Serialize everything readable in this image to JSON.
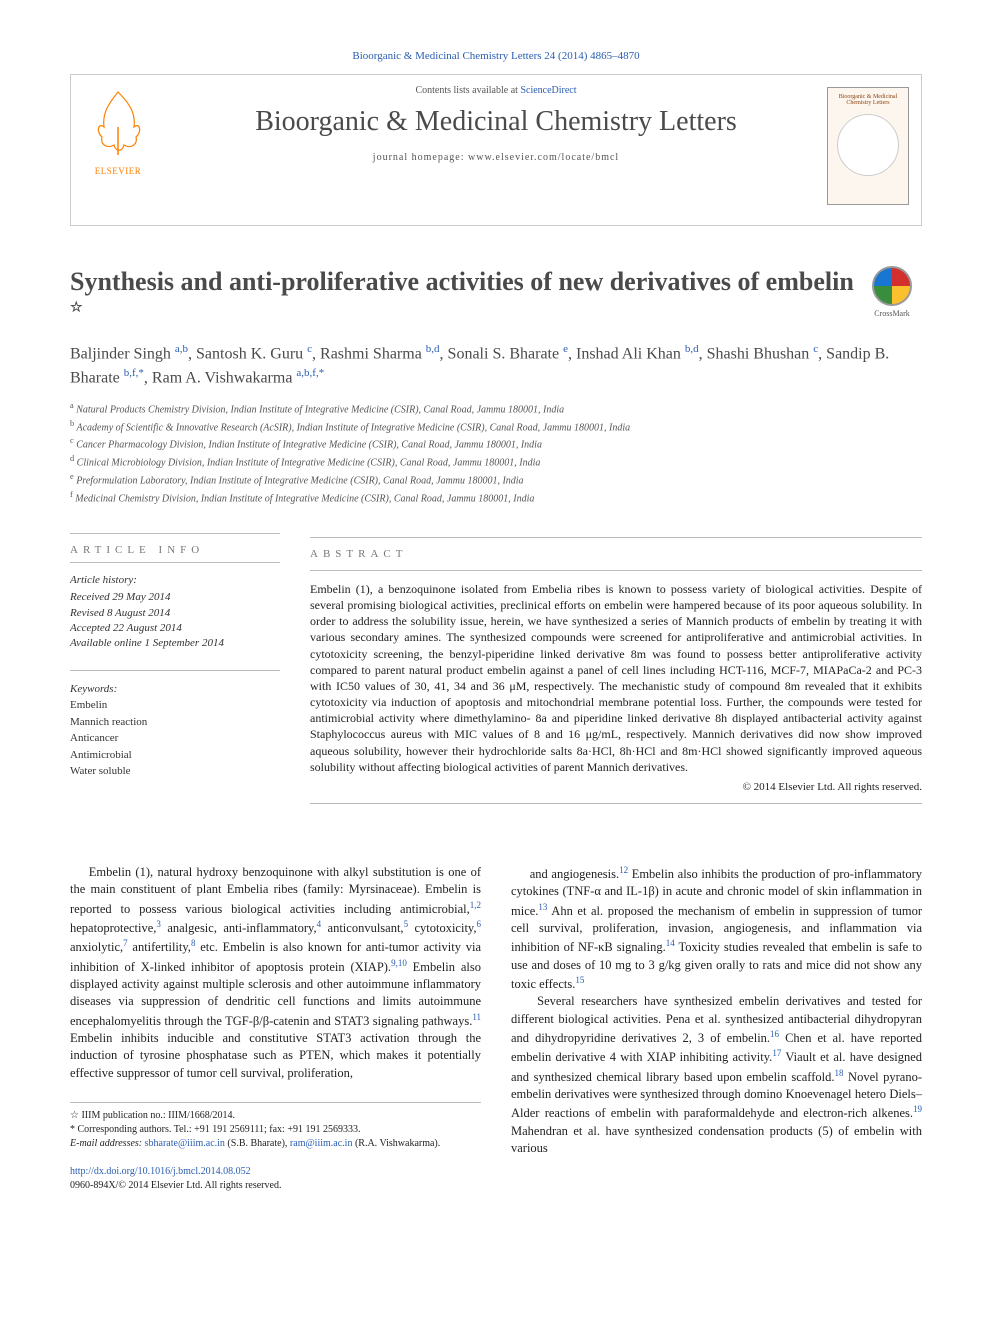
{
  "citation": "Bioorganic & Medicinal Chemistry Letters 24 (2014) 4865–4870",
  "header": {
    "contents_prefix": "Contents lists available at ",
    "contents_link": "ScienceDirect",
    "journal": "Bioorganic & Medicinal Chemistry Letters",
    "homepage_prefix": "journal homepage: ",
    "homepage": "www.elsevier.com/locate/bmcl",
    "publisher": "ELSEVIER",
    "cover_title": "Bioorganic & Medicinal Chemistry Letters"
  },
  "title": "Synthesis and anti-proliferative activities of new derivatives of embelin",
  "crossmark": "CrossMark",
  "authors_html": "Baljinder Singh <span class='aff'>a,b</span>, Santosh K. Guru <span class='aff'>c</span>, Rashmi Sharma <span class='aff'>b,d</span>, Sonali S. Bharate <span class='aff'>e</span>, Inshad Ali Khan <span class='aff'>b,d</span>, Shashi Bhushan <span class='aff'>c</span>, Sandip B. Bharate <span class='aff'>b,f,</span><span class='aff star'>*</span>, Ram A. Vishwakarma <span class='aff'>a,b,f,</span><span class='aff star'>*</span>",
  "affiliations": [
    "a Natural Products Chemistry Division, Indian Institute of Integrative Medicine (CSIR), Canal Road, Jammu 180001, India",
    "b Academy of Scientific & Innovative Research (AcSIR), Indian Institute of Integrative Medicine (CSIR), Canal Road, Jammu 180001, India",
    "c Cancer Pharmacology Division, Indian Institute of Integrative Medicine (CSIR), Canal Road, Jammu 180001, India",
    "d Clinical Microbiology Division, Indian Institute of Integrative Medicine (CSIR), Canal Road, Jammu 180001, India",
    "e Preformulation Laboratory, Indian Institute of Integrative Medicine (CSIR), Canal Road, Jammu 180001, India",
    "f Medicinal Chemistry Division, Indian Institute of Integrative Medicine (CSIR), Canal Road, Jammu 180001, India"
  ],
  "info": {
    "label": "ARTICLE INFO",
    "history_label": "Article history:",
    "history": [
      "Received 29 May 2014",
      "Revised 8 August 2014",
      "Accepted 22 August 2014",
      "Available online 1 September 2014"
    ],
    "keywords_label": "Keywords:",
    "keywords": [
      "Embelin",
      "Mannich reaction",
      "Anticancer",
      "Antimicrobial",
      "Water soluble"
    ]
  },
  "abstract": {
    "label": "ABSTRACT",
    "text": "Embelin (1), a benzoquinone isolated from Embelia ribes is known to possess variety of biological activities. Despite of several promising biological activities, preclinical efforts on embelin were hampered because of its poor aqueous solubility. In order to address the solubility issue, herein, we have synthesized a series of Mannich products of embelin by treating it with various secondary amines. The synthesized compounds were screened for antiproliferative and antimicrobial activities. In cytotoxicity screening, the benzyl-piperidine linked derivative 8m was found to possess better antiproliferative activity compared to parent natural product embelin against a panel of cell lines including HCT-116, MCF-7, MIAPaCa-2 and PC-3 with IC50 values of 30, 41, 34 and 36 μM, respectively. The mechanistic study of compound 8m revealed that it exhibits cytotoxicity via induction of apoptosis and mitochondrial membrane potential loss. Further, the compounds were tested for antimicrobial activity where dimethylamino- 8a and piperidine linked derivative 8h displayed antibacterial activity against Staphylococcus aureus with MIC values of 8 and 16 μg/mL, respectively. Mannich derivatives did now show improved aqueous solubility, however their hydrochloride salts 8a·HCl, 8h·HCl and 8m·HCl showed significantly improved aqueous solubility without affecting biological activities of parent Mannich derivatives.",
    "copyright": "© 2014 Elsevier Ltd. All rights reserved."
  },
  "body": {
    "col1": "Embelin (1), natural hydroxy benzoquinone with alkyl substitution is one of the main constituent of plant Embelia ribes (family: Myrsinaceae). Embelin is reported to possess various biological activities including antimicrobial,<span class='ref'>1,2</span> hepatoprotective,<span class='ref'>3</span> analgesic, anti-inflammatory,<span class='ref'>4</span> anticonvulsant,<span class='ref'>5</span> cytotoxicity,<span class='ref'>6</span> anxiolytic,<span class='ref'>7</span> antifertility,<span class='ref'>8</span> etc. Embelin is also known for anti-tumor activity via inhibition of X-linked inhibitor of apoptosis protein (XIAP).<span class='ref'>9,10</span> Embelin also displayed activity against multiple sclerosis and other autoimmune inflammatory diseases via suppression of dendritic cell functions and limits autoimmune encephalomyelitis through the TGF-β/β-catenin and STAT3 signaling pathways.<span class='ref'>11</span> Embelin inhibits inducible and constitutive STAT3 activation through the induction of tyrosine phosphatase such as PTEN, which makes it potentially effective suppressor of tumor cell survival, proliferation,",
    "col2": "and angiogenesis.<span class='ref'>12</span> Embelin also inhibits the production of pro-inflammatory cytokines (TNF-α and IL-1β) in acute and chronic model of skin inflammation in mice.<span class='ref'>13</span> Ahn et al. proposed the mechanism of embelin in suppression of tumor cell survival, proliferation, invasion, angiogenesis, and inflammation via inhibition of NF-κB signaling.<span class='ref'>14</span> Toxicity studies revealed that embelin is safe to use and doses of 10 mg to 3 g/kg given orally to rats and mice did not show any toxic effects.<span class='ref'>15</span><br>&nbsp;&nbsp;&nbsp;&nbsp;Several researchers have synthesized embelin derivatives and tested for different biological activities. Pena et al. synthesized antibacterial dihydropyran and dihydropyridine derivatives 2, 3 of embelin.<span class='ref'>16</span> Chen et al. have reported embelin derivative 4 with XIAP inhibiting activity.<span class='ref'>17</span> Viault et al. have designed and synthesized chemical library based upon embelin scaffold.<span class='ref'>18</span> Novel pyrano-embelin derivatives were synthesized through domino Knoevenagel hetero Diels–Alder reactions of embelin with paraformaldehyde and electron-rich alkenes.<span class='ref'>19</span> Mahendran et al. have synthesized condensation products (5) of embelin with various"
  },
  "footnotes": {
    "pub_no": "☆ IIIM publication no.: IIIM/1668/2014.",
    "corresponding": "* Corresponding authors. Tel.: +91 191 2569111; fax: +91 191 2569333.",
    "emails_label": "E-mail addresses:",
    "email1": "sbharate@iiim.ac.in",
    "email1_name": "(S.B. Bharate),",
    "email2": "ram@iiim.ac.in",
    "email2_name": "(R.A. Vishwakarma)."
  },
  "footer": {
    "doi": "http://dx.doi.org/10.1016/j.bmcl.2014.08.052",
    "issn": "0960-894X/© 2014 Elsevier Ltd. All rights reserved."
  },
  "colors": {
    "link": "#2a5db0",
    "publisher": "#ff8000",
    "heading": "#4a4a4a",
    "border": "#cccccc"
  }
}
